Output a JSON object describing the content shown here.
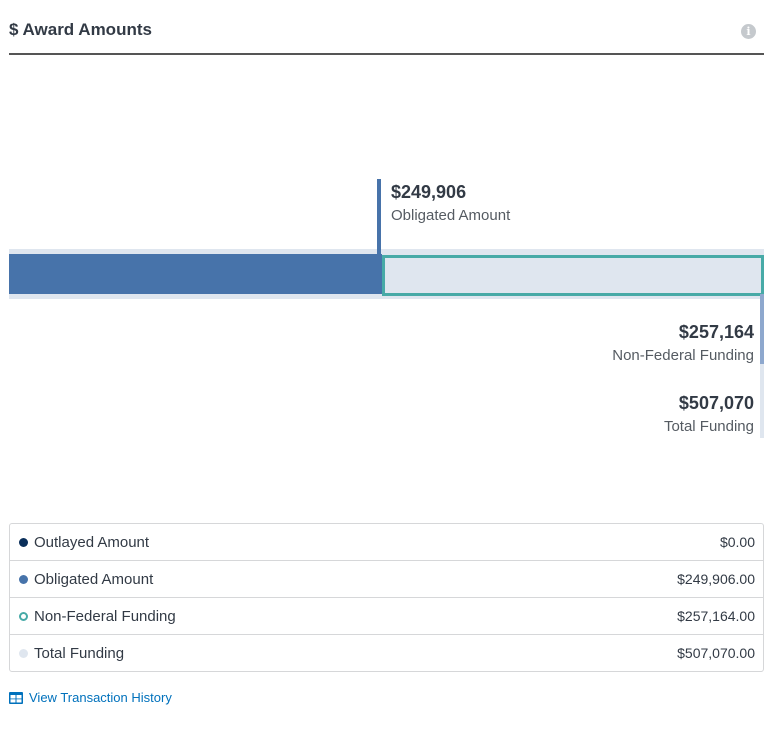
{
  "header": {
    "title": "$ Award Amounts",
    "info_icon": "info-icon"
  },
  "colors": {
    "outlayed": "#0a2f5a",
    "obligated": "#4773aa",
    "non_federal": "#47aaa7",
    "total": "#dfe6ef",
    "link": "#0071bc"
  },
  "chart": {
    "obligated": {
      "value": "$249,906",
      "label": "Obligated Amount"
    },
    "non_federal": {
      "value": "$257,164",
      "label": "Non-Federal Funding"
    },
    "total": {
      "value": "$507,070",
      "label": "Total Funding"
    }
  },
  "legend": [
    {
      "label": "Outlayed Amount",
      "value": "$0.00"
    },
    {
      "label": "Obligated Amount",
      "value": "$249,906.00"
    },
    {
      "label": "Non-Federal Funding",
      "value": "$257,164.00"
    },
    {
      "label": "Total Funding",
      "value": "$507,070.00"
    }
  ],
  "footer": {
    "history_link": "View Transaction History",
    "icon": "table-icon"
  }
}
